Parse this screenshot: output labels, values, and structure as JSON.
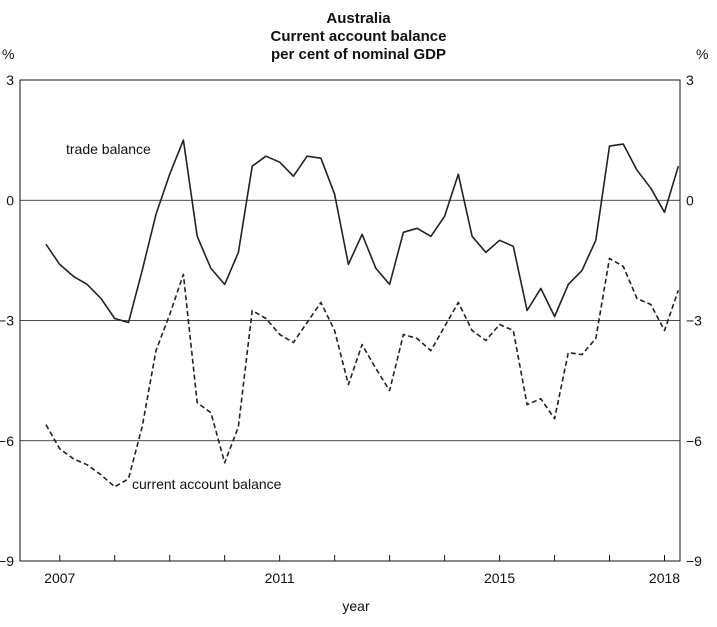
{
  "chart_data": {
    "type": "line",
    "title": [
      "Australia",
      "Current account balance",
      "per cent of nominal GDP"
    ],
    "ylabel_left": "%",
    "ylabel_right": "%",
    "xlabel": "year",
    "ylim": [
      -9,
      3
    ],
    "yticks": [
      3,
      0,
      -3,
      -6,
      -9
    ],
    "ytick_labels": [
      "3",
      "0",
      "−3",
      "−6",
      "−9"
    ],
    "xlim": [
      2006.75,
      2018.5
    ],
    "xticks": [
      2007,
      2011,
      2015,
      2018
    ],
    "xtick_labels": [
      "2007",
      "2011",
      "2015",
      "2018"
    ],
    "grid": "horizontal",
    "series": [
      {
        "name": "trade balance",
        "style": "solid",
        "x": [
          2006.75,
          2007.0,
          2007.25,
          2007.5,
          2007.75,
          2008.0,
          2008.25,
          2008.5,
          2008.75,
          2009.0,
          2009.25,
          2009.5,
          2009.75,
          2010.0,
          2010.25,
          2010.5,
          2010.75,
          2011.0,
          2011.25,
          2011.5,
          2011.75,
          2012.0,
          2012.25,
          2012.5,
          2012.75,
          2013.0,
          2013.25,
          2013.5,
          2013.75,
          2014.0,
          2014.25,
          2014.5,
          2014.75,
          2015.0,
          2015.25,
          2015.5,
          2015.75,
          2016.0,
          2016.25,
          2016.5,
          2016.75,
          2017.0,
          2017.25,
          2017.5,
          2017.75,
          2018.0,
          2018.25
        ],
        "y": [
          -1.1,
          -1.6,
          -1.9,
          -2.1,
          -2.45,
          -2.95,
          -3.05,
          -1.75,
          -0.35,
          0.65,
          1.5,
          -0.9,
          -1.7,
          -2.1,
          -1.3,
          0.85,
          1.1,
          0.95,
          0.6,
          1.1,
          1.05,
          0.15,
          -1.6,
          -0.85,
          -1.7,
          -2.1,
          -0.8,
          -0.7,
          -0.9,
          -0.4,
          0.65,
          -0.9,
          -1.3,
          -1.0,
          -1.15,
          -2.75,
          -2.2,
          -2.9,
          -2.1,
          -1.75,
          -1.0,
          1.35,
          1.4,
          0.75,
          0.3,
          -0.3,
          0.85
        ]
      },
      {
        "name": "current account balance",
        "style": "dashed",
        "x": [
          2006.75,
          2007.0,
          2007.25,
          2007.5,
          2007.75,
          2008.0,
          2008.25,
          2008.5,
          2008.75,
          2009.0,
          2009.25,
          2009.5,
          2009.75,
          2010.0,
          2010.25,
          2010.5,
          2010.75,
          2011.0,
          2011.25,
          2011.5,
          2011.75,
          2012.0,
          2012.25,
          2012.5,
          2012.75,
          2013.0,
          2013.25,
          2013.5,
          2013.75,
          2014.0,
          2014.25,
          2014.5,
          2014.75,
          2015.0,
          2015.25,
          2015.5,
          2015.75,
          2016.0,
          2016.25,
          2016.5,
          2016.75,
          2017.0,
          2017.25,
          2017.5,
          2017.75,
          2018.0,
          2018.25
        ],
        "y": [
          -5.6,
          -6.2,
          -6.45,
          -6.6,
          -6.85,
          -7.15,
          -6.95,
          -5.65,
          -3.75,
          -2.85,
          -1.85,
          -5.05,
          -5.3,
          -6.55,
          -5.65,
          -2.75,
          -2.95,
          -3.35,
          -3.55,
          -3.05,
          -2.55,
          -3.25,
          -4.6,
          -3.6,
          -4.2,
          -4.75,
          -3.35,
          -3.45,
          -3.75,
          -3.15,
          -2.55,
          -3.25,
          -3.5,
          -3.1,
          -3.25,
          -5.1,
          -4.95,
          -5.45,
          -3.8,
          -3.85,
          -3.45,
          -1.45,
          -1.65,
          -2.45,
          -2.6,
          -3.25,
          -2.25
        ]
      }
    ],
    "annotations": [
      "trade balance",
      "current account balance"
    ]
  }
}
